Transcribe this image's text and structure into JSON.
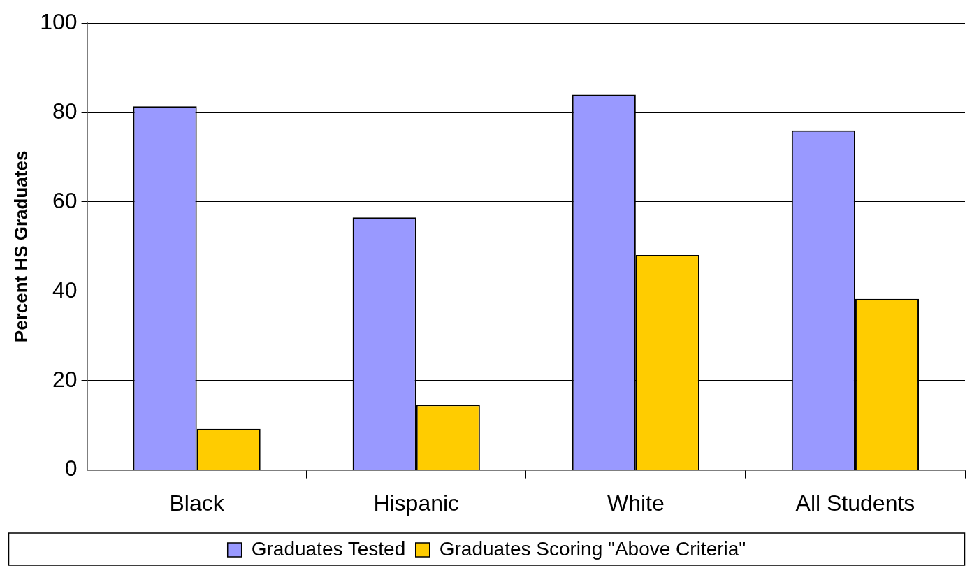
{
  "chart_data": {
    "type": "bar",
    "ylabel": "Percent HS Graduates",
    "categories": [
      "Black",
      "Hispanic",
      "White",
      "All Students"
    ],
    "series": [
      {
        "name": "Graduates Tested",
        "color": "#9999ff",
        "values": [
          81.4,
          56.5,
          84.0,
          76.0
        ]
      },
      {
        "name": "Graduates Scoring \"Above Criteria\"",
        "color": "#ffcc00",
        "values": [
          9.2,
          14.6,
          48.1,
          38.3
        ]
      }
    ],
    "ylim": [
      0,
      100
    ],
    "yticks": [
      0,
      20,
      40,
      60,
      80,
      100
    ],
    "grid": "y",
    "legend": "bottom"
  }
}
